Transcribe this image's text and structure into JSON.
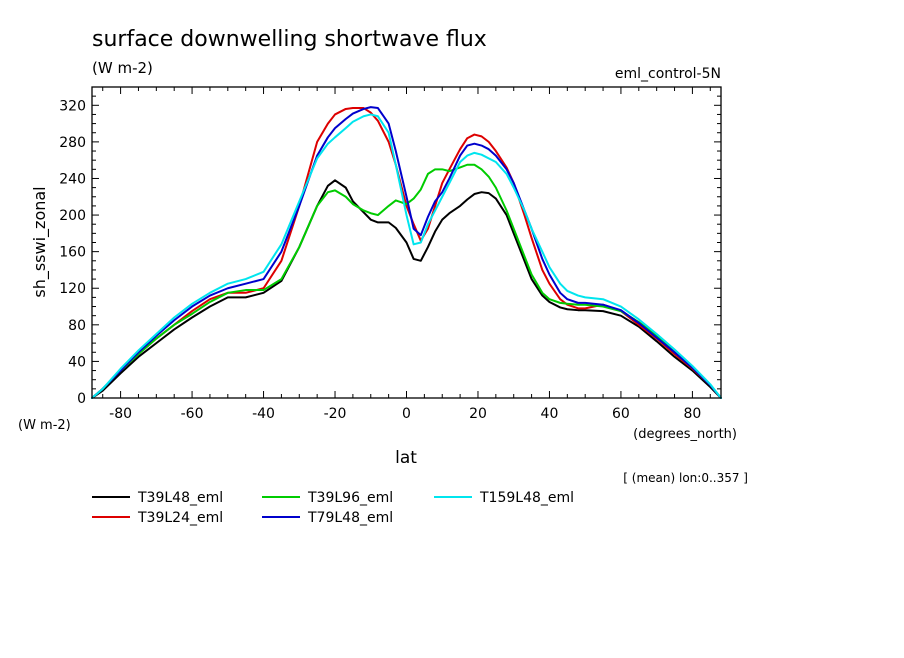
{
  "chart_data": {
    "type": "line",
    "title": "surface downwelling shortwave flux",
    "units": "(W m-2)",
    "subtitle_right": "eml_control-5N",
    "ylabel": "sh_sswi_zonal",
    "ylabel_units": "(W m-2)",
    "xlabel": "lat",
    "xlabel_units": "(degrees_north)",
    "annotation": "[ (mean) lon:0..357 ]",
    "xlim": [
      -88,
      88
    ],
    "ylim": [
      0,
      340
    ],
    "x_ticks": [
      -80,
      -60,
      -40,
      -20,
      0,
      20,
      40,
      60,
      80
    ],
    "y_ticks": [
      0,
      40,
      80,
      120,
      160,
      200,
      240,
      280,
      320
    ],
    "legend_placement": "bottom",
    "grid": false,
    "x": [
      -88,
      -85,
      -80,
      -75,
      -70,
      -65,
      -60,
      -55,
      -50,
      -45,
      -40,
      -35,
      -30,
      -25,
      -22,
      -20,
      -17,
      -15,
      -12,
      -10,
      -8,
      -5,
      -3,
      0,
      2,
      4,
      6,
      8,
      10,
      12,
      15,
      17,
      19,
      21,
      23,
      25,
      28,
      30,
      33,
      35,
      38,
      40,
      43,
      45,
      48,
      50,
      55,
      60,
      65,
      70,
      75,
      80,
      85,
      88
    ],
    "series": [
      {
        "name": "T39L48_eml",
        "color": "#000000",
        "values": [
          0,
          8,
          27,
          45,
          60,
          75,
          88,
          100,
          110,
          110,
          115,
          128,
          165,
          210,
          232,
          238,
          230,
          215,
          203,
          195,
          192,
          192,
          186,
          170,
          152,
          150,
          165,
          182,
          195,
          202,
          210,
          217,
          223,
          225,
          224,
          218,
          200,
          180,
          150,
          130,
          112,
          105,
          99,
          97,
          96,
          96,
          95,
          90,
          78,
          62,
          45,
          30,
          12,
          0
        ]
      },
      {
        "name": "T39L24_eml",
        "color": "#dd0000",
        "values": [
          0,
          10,
          30,
          48,
          65,
          80,
          95,
          108,
          115,
          115,
          120,
          150,
          210,
          280,
          300,
          310,
          316,
          317,
          317,
          312,
          303,
          280,
          255,
          210,
          190,
          172,
          185,
          210,
          235,
          250,
          272,
          284,
          288,
          286,
          280,
          270,
          252,
          235,
          200,
          175,
          140,
          125,
          108,
          102,
          98,
          98,
          102,
          95,
          80,
          65,
          48,
          32,
          14,
          0
        ]
      },
      {
        "name": "T39L96_eml",
        "color": "#00cc00",
        "values": [
          0,
          10,
          30,
          48,
          65,
          80,
          92,
          105,
          115,
          118,
          118,
          130,
          165,
          210,
          225,
          227,
          220,
          212,
          205,
          202,
          200,
          210,
          216,
          212,
          218,
          228,
          245,
          250,
          250,
          248,
          252,
          255,
          255,
          250,
          242,
          230,
          205,
          185,
          155,
          135,
          115,
          108,
          104,
          103,
          102,
          102,
          100,
          95,
          83,
          68,
          50,
          33,
          14,
          0
        ]
      },
      {
        "name": "T79L48_eml",
        "color": "#0000cc",
        "values": [
          0,
          10,
          30,
          50,
          68,
          85,
          100,
          112,
          120,
          125,
          130,
          160,
          210,
          265,
          285,
          295,
          305,
          311,
          316,
          318,
          317,
          300,
          270,
          220,
          185,
          178,
          198,
          215,
          225,
          240,
          265,
          276,
          278,
          276,
          272,
          265,
          250,
          235,
          205,
          185,
          152,
          135,
          115,
          108,
          104,
          104,
          102,
          96,
          82,
          66,
          50,
          33,
          14,
          0
        ]
      },
      {
        "name": "T159L48_eml",
        "color": "#00e5ee",
        "values": [
          0,
          10,
          32,
          52,
          70,
          88,
          103,
          115,
          125,
          130,
          138,
          168,
          215,
          262,
          278,
          285,
          295,
          302,
          308,
          310,
          308,
          290,
          255,
          200,
          168,
          170,
          190,
          205,
          220,
          235,
          258,
          265,
          268,
          266,
          262,
          258,
          245,
          230,
          205,
          185,
          160,
          143,
          125,
          117,
          112,
          110,
          108,
          100,
          86,
          70,
          53,
          35,
          15,
          0
        ]
      }
    ]
  }
}
